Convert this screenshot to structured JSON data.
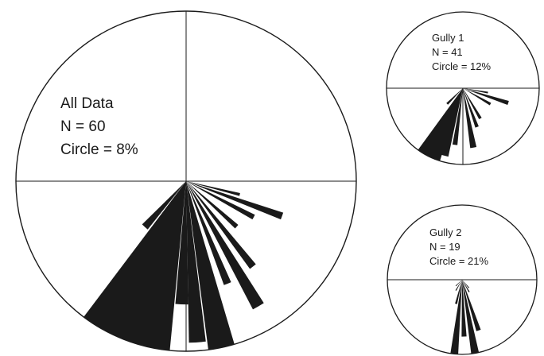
{
  "diagrams": [
    {
      "id": "all",
      "title": "All Data",
      "n_label": "N = 60",
      "circle_label": "Circle = 8%",
      "petals": [
        {
          "bearing": 208,
          "pct": 12.6,
          "w": 10
        },
        {
          "bearing": 212,
          "pct": 11.0,
          "w": 10
        },
        {
          "bearing": 204,
          "pct": 10.8,
          "w": 10
        },
        {
          "bearing": 200,
          "pct": 8.4,
          "w": 10
        },
        {
          "bearing": 196,
          "pct": 9.1,
          "w": 8
        },
        {
          "bearing": 190,
          "pct": 10.5,
          "w": 9
        },
        {
          "bearing": 176,
          "pct": 7.6,
          "w": 6
        },
        {
          "bearing": 182,
          "pct": 5.8,
          "w": 6
        },
        {
          "bearing": 168,
          "pct": 8.4,
          "w": 9
        },
        {
          "bearing": 158,
          "pct": 5.2,
          "w": 4
        },
        {
          "bearing": 150,
          "pct": 6.8,
          "w": 5
        },
        {
          "bearing": 142,
          "pct": 5.1,
          "w": 4
        },
        {
          "bearing": 110,
          "pct": 4.8,
          "w": 4
        },
        {
          "bearing": 118,
          "pct": 3.6,
          "w": 4
        },
        {
          "bearing": 104,
          "pct": 2.6,
          "w": 3
        },
        {
          "bearing": 222,
          "pct": 2.9,
          "w": 7
        },
        {
          "bearing": 132,
          "pct": 3.2,
          "w": 4
        }
      ]
    },
    {
      "id": "gully1",
      "title": "Gully 1",
      "n_label": "N = 41",
      "circle_label": "Circle = 12%",
      "petals": [
        {
          "bearing": 208,
          "pct": 17.2,
          "w": 9
        },
        {
          "bearing": 202,
          "pct": 14.0,
          "w": 9
        },
        {
          "bearing": 196,
          "pct": 11.0,
          "w": 8
        },
        {
          "bearing": 212,
          "pct": 13.0,
          "w": 8
        },
        {
          "bearing": 188,
          "pct": 9.0,
          "w": 5
        },
        {
          "bearing": 170,
          "pct": 9.5,
          "w": 6
        },
        {
          "bearing": 160,
          "pct": 6.5,
          "w": 5
        },
        {
          "bearing": 150,
          "pct": 5.5,
          "w": 5
        },
        {
          "bearing": 120,
          "pct": 5.0,
          "w": 5
        },
        {
          "bearing": 108,
          "pct": 7.5,
          "w": 5
        },
        {
          "bearing": 100,
          "pct": 4.0,
          "w": 4
        },
        {
          "bearing": 225,
          "pct": 3.5,
          "w": 6
        }
      ]
    },
    {
      "id": "gully2",
      "title": "Gully 2",
      "n_label": "N = 19",
      "circle_label": "Circle = 21%",
      "petals": [
        {
          "bearing": 186,
          "pct": 21.5,
          "w": 6
        },
        {
          "bearing": 170,
          "pct": 23.0,
          "w": 6
        },
        {
          "bearing": 178,
          "pct": 16.0,
          "w": 5
        },
        {
          "bearing": 162,
          "pct": 15.0,
          "w": 5
        },
        {
          "bearing": 194,
          "pct": 7.0,
          "w": 5
        },
        {
          "bearing": 150,
          "pct": 4.0,
          "w": 5
        },
        {
          "bearing": 140,
          "pct": 3.0,
          "w": 5
        },
        {
          "bearing": 210,
          "pct": 3.5,
          "w": 5
        },
        {
          "bearing": 225,
          "pct": 2.5,
          "w": 5
        }
      ]
    }
  ],
  "colors": {
    "petal": "#1a1a1a",
    "line": "#1a1a1a",
    "background": "#ffffff"
  }
}
